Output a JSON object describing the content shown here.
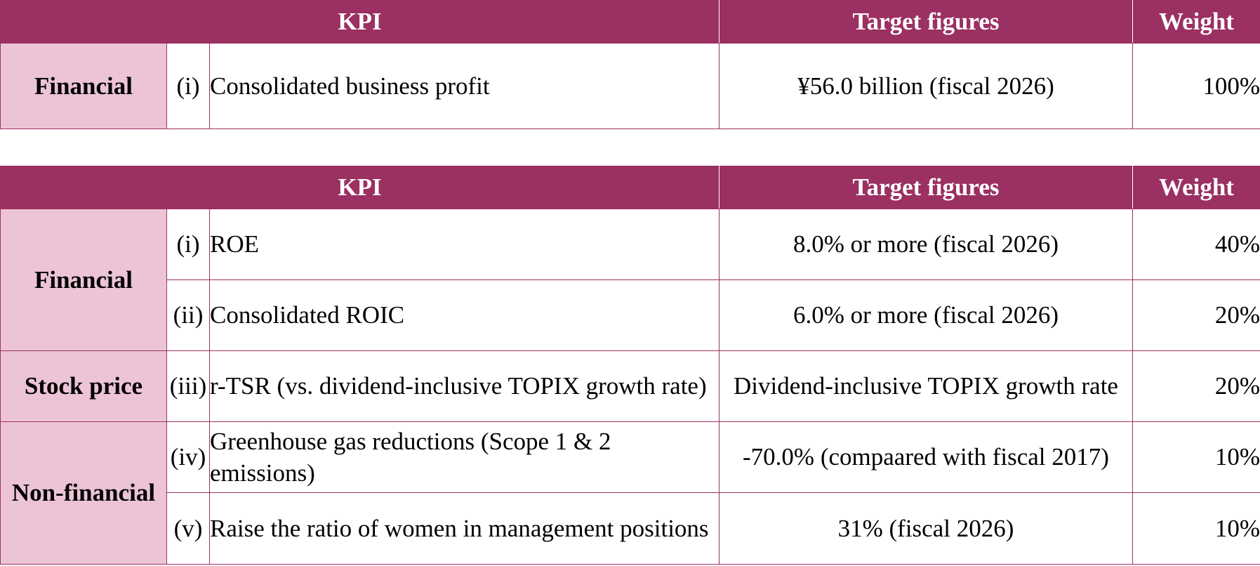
{
  "table1": {
    "headers": {
      "kpi": "KPI",
      "target": "Target figures",
      "weight": "Weight"
    },
    "rows": [
      {
        "category": "Financial",
        "num": "(i)",
        "kpi": "Consolidated business profit",
        "target": "¥56.0 billion (fiscal 2026)",
        "weight": "100%"
      }
    ]
  },
  "table2": {
    "headers": {
      "kpi": "KPI",
      "target": "Target figures",
      "weight": "Weight"
    },
    "categories": {
      "financial": "Financial",
      "stock": "Stock price",
      "nonfinancial": "Non-financial"
    },
    "rows": [
      {
        "num": "(i)",
        "kpi": "ROE",
        "target": "8.0% or more (fiscal 2026)",
        "weight": "40%"
      },
      {
        "num": "(ii)",
        "kpi": "Consolidated ROIC",
        "target": "6.0% or more (fiscal 2026)",
        "weight": "20%"
      },
      {
        "num": "(iii)",
        "kpi": "r-TSR (vs. dividend-inclusive TOPIX growth rate)",
        "target": "Dividend-inclusive TOPIX growth rate",
        "weight": "20%"
      },
      {
        "num": "(iv)",
        "kpi": "Greenhouse gas reductions (Scope 1 & 2 emissions)",
        "target": "-70.0% (compaared with fiscal 2017)",
        "weight": "10%"
      },
      {
        "num": "(v)",
        "kpi": "Raise the ratio of women in management positions",
        "target": "31% (fiscal 2026)",
        "weight": "10%"
      }
    ]
  }
}
